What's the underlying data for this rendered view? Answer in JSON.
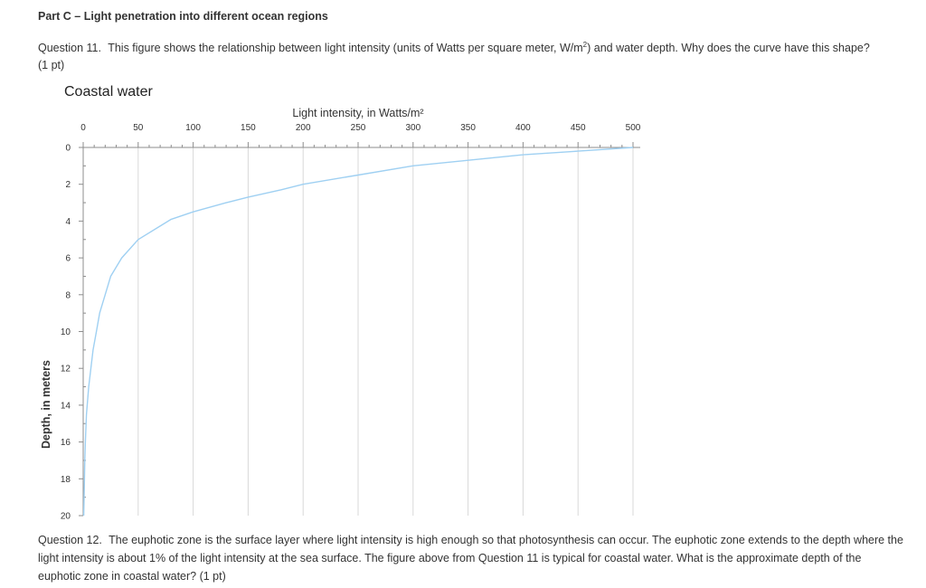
{
  "part": {
    "title": "Part C – Light penetration into different ocean regions"
  },
  "q11": {
    "number": "Question 11.",
    "text_before": "This figure shows the relationship between light intensity (units of Watts per square meter, W/m",
    "sup": "2",
    "text_after": ") and water depth.  Why does the curve have this shape?",
    "points": "(1 pt)"
  },
  "q12": {
    "number": "Question 12.",
    "text": "The euphotic zone is the surface layer where light intensity is high enough so that photosynthesis can occur. The euphotic zone extends to the depth where the light intensity is about 1% of the light intensity at the sea surface.  The figure above from Question 11 is typical for coastal water.  What is the approximate depth of the euphotic zone in coastal water? (1 pt)"
  },
  "chart_data": {
    "type": "line",
    "title": "Coastal water",
    "xlabel": "Light intensity, in Watts/m²",
    "ylabel": "Depth, in meters",
    "xlim": [
      0,
      500
    ],
    "ylim": [
      0,
      20
    ],
    "y_inverted": true,
    "x_axis_position": "top",
    "x_ticks": [
      0,
      50,
      100,
      150,
      200,
      250,
      300,
      350,
      400,
      450,
      500
    ],
    "y_ticks": [
      0,
      2,
      4,
      6,
      8,
      10,
      12,
      14,
      16,
      18,
      20
    ],
    "grid": "vertical",
    "line_color": "#9fd0f2",
    "series": [
      {
        "x": [
          500,
          450,
          400,
          350,
          300,
          250,
          200,
          180,
          150,
          130,
          100,
          80,
          50,
          35,
          25,
          20,
          15,
          12,
          9,
          7,
          5,
          3,
          2,
          1.5,
          1,
          0.5
        ],
        "y": [
          0,
          0.2,
          0.4,
          0.7,
          1.0,
          1.5,
          2.0,
          2.3,
          2.7,
          3.0,
          3.5,
          3.9,
          5.0,
          6.0,
          7.0,
          8.0,
          9.0,
          10.0,
          11.0,
          12.0,
          13.0,
          14.5,
          16.0,
          17.0,
          18.5,
          20.0
        ]
      }
    ]
  }
}
